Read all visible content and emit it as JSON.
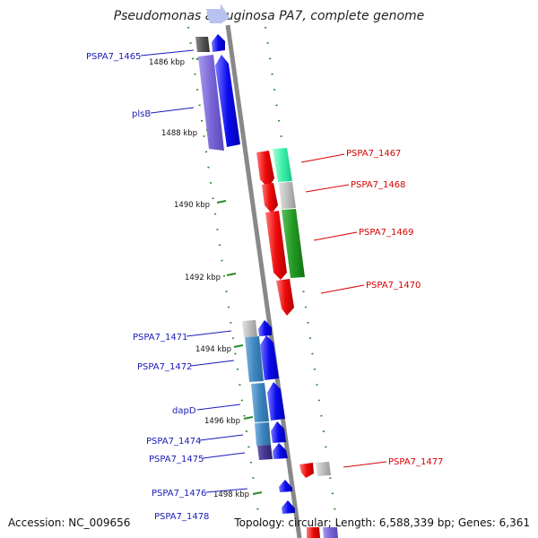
{
  "title": "Pseudomonas aeruginosa PA7, complete genome",
  "footer": {
    "accession": "Accession: NC_009656",
    "topology": "Topology: circular; Length: 6,588,339 bp; Genes: 6,361"
  },
  "colors": {
    "backbone": "#888888",
    "tick": "#2a8a2a",
    "forward_label": "#1a1ab8",
    "reverse_label": "#d80000",
    "blue_gene": "#0a0aee",
    "red_gene": "#ee0a0a"
  },
  "kbp_ticks": [
    "1486 kbp",
    "1488 kbp",
    "1490 kbp",
    "1492 kbp",
    "1494 kbp",
    "1496 kbp",
    "1498 kbp"
  ],
  "genes": [
    {
      "label": "PSPA7_1465",
      "strand": "forward"
    },
    {
      "label": "plsB",
      "strand": "forward"
    },
    {
      "label": "PSPA7_1467",
      "strand": "reverse"
    },
    {
      "label": "PSPA7_1468",
      "strand": "reverse"
    },
    {
      "label": "PSPA7_1469",
      "strand": "reverse"
    },
    {
      "label": "PSPA7_1470",
      "strand": "reverse"
    },
    {
      "label": "PSPA7_1471",
      "strand": "forward"
    },
    {
      "label": "PSPA7_1472",
      "strand": "forward"
    },
    {
      "label": "dapD",
      "strand": "forward"
    },
    {
      "label": "PSPA7_1474",
      "strand": "forward"
    },
    {
      "label": "PSPA7_1475",
      "strand": "forward"
    },
    {
      "label": "PSPA7_1477",
      "strand": "reverse"
    },
    {
      "label": "PSPA7_1476",
      "strand": "forward"
    },
    {
      "label": "PSPA7_1478",
      "strand": "forward"
    }
  ]
}
